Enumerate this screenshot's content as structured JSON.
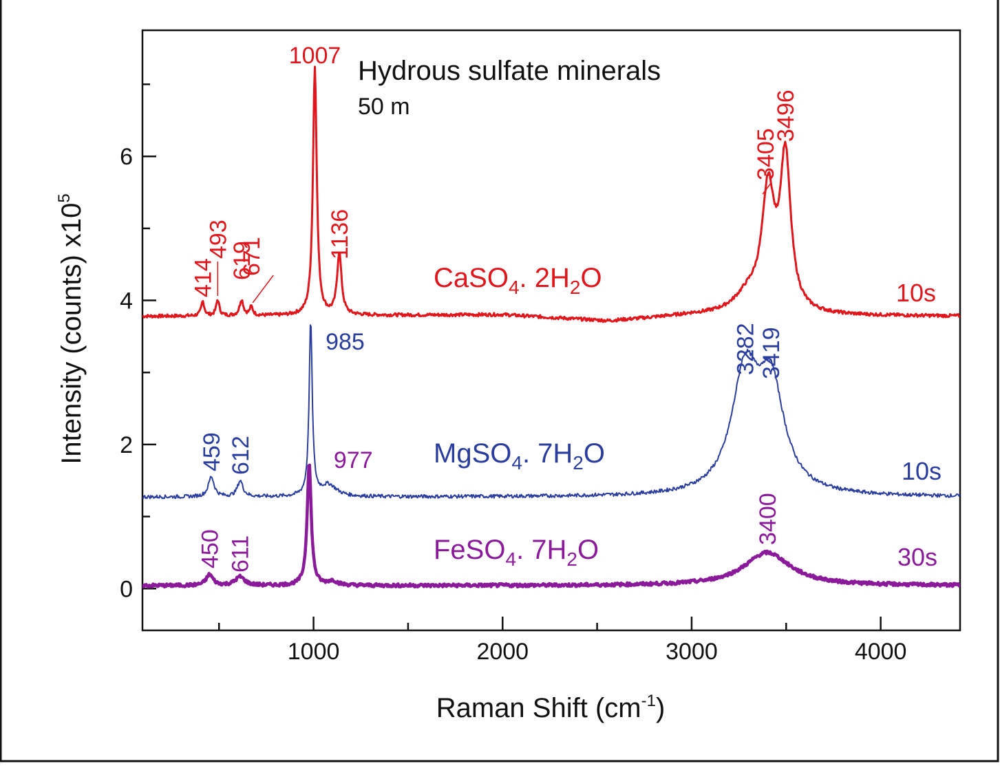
{
  "chart_data": {
    "type": "line",
    "title": "Hydrous sulfate minerals",
    "subtitle": "50 m",
    "xlabel": "Raman Shift (cm",
    "xlabel_sup": "-1",
    "xlabel_end": ")",
    "ylabel": "Intensity (counts) x10",
    "ylabel_sup": "5",
    "xlim": [
      95,
      4420
    ],
    "ylim": [
      -0.58,
      7.75
    ],
    "x_ticks_major": [
      1000,
      2000,
      3000,
      4000
    ],
    "x_tick_labels": [
      "1000",
      "2000",
      "3000",
      "4000"
    ],
    "x_ticks_minor": [
      500,
      1500,
      2500,
      3500
    ],
    "y_ticks_major": [
      0,
      2,
      4,
      6
    ],
    "y_tick_labels": [
      "0",
      "2",
      "4",
      "6"
    ],
    "y_ticks_minor": [
      1,
      3,
      5,
      7
    ],
    "grid": false,
    "series": [
      {
        "name": "CaSO4. 2H2O",
        "name_parts": [
          "CaSO",
          "4",
          ". 2H",
          "2",
          "O"
        ],
        "time": "10s",
        "color": "#e0161c",
        "stroke": 3,
        "baseline": 3.78,
        "baseline_shape": [
          [
            100,
            3.78
          ],
          [
            2000,
            3.8
          ],
          [
            2560,
            3.71
          ],
          [
            3000,
            3.79
          ],
          [
            4420,
            3.78
          ]
        ],
        "peaks": [
          {
            "x": 414,
            "h": 0.2,
            "w": 10
          },
          {
            "x": 493,
            "h": 0.22,
            "w": 10
          },
          {
            "x": 619,
            "h": 0.22,
            "w": 12
          },
          {
            "x": 671,
            "h": 0.12,
            "w": 10
          },
          {
            "x": 1007,
            "h": 3.45,
            "w": 12
          },
          {
            "x": 1136,
            "h": 0.86,
            "w": 14
          },
          {
            "x": 3405,
            "h": 1.62,
            "w": 40
          },
          {
            "x": 3496,
            "h": 2.1,
            "w": 34
          },
          {
            "x": 3300,
            "h": 0.25,
            "w": 90
          }
        ],
        "peak_labels": [
          {
            "text": "414",
            "x": 414
          },
          {
            "text": "493",
            "x": 493
          },
          {
            "text": "619",
            "x": 619
          },
          {
            "text": "671",
            "x": 671
          },
          {
            "text": "1007",
            "x": 1007
          },
          {
            "text": "1136",
            "x": 1136
          },
          {
            "text": "3405",
            "x": 3405
          },
          {
            "text": "3496",
            "x": 3496
          }
        ]
      },
      {
        "name": "MgSO4. 7H2O",
        "name_parts": [
          "MgSO",
          "4",
          ". 7H",
          "2",
          "O"
        ],
        "time": "10s",
        "color": "#2a3d9e",
        "stroke": 2,
        "baseline": 1.27,
        "baseline_shape": [
          [
            100,
            1.27
          ],
          [
            4420,
            1.27
          ]
        ],
        "peaks": [
          {
            "x": 459,
            "h": 0.28,
            "w": 18
          },
          {
            "x": 612,
            "h": 0.22,
            "w": 18
          },
          {
            "x": 985,
            "h": 2.42,
            "w": 10
          },
          {
            "x": 1080,
            "h": 0.16,
            "w": 50
          },
          {
            "x": 3282,
            "h": 1.6,
            "w": 85
          },
          {
            "x": 3419,
            "h": 1.45,
            "w": 85
          }
        ],
        "peak_labels": [
          {
            "text": "459",
            "x": 459
          },
          {
            "text": "612",
            "x": 612
          },
          {
            "text": "985",
            "x": 985
          },
          {
            "text": "3282",
            "x": 3282
          },
          {
            "text": "3419",
            "x": 3419
          }
        ]
      },
      {
        "name": "FeSO4. 7H2O",
        "name_parts": [
          "FeSO",
          "4",
          ". 7H",
          "2",
          "O"
        ],
        "time": "30s",
        "color": "#8b1a9b",
        "stroke": 4.5,
        "baseline": 0.04,
        "baseline_shape": [
          [
            100,
            0.04
          ],
          [
            4420,
            0.04
          ]
        ],
        "peaks": [
          {
            "x": 450,
            "h": 0.15,
            "w": 22
          },
          {
            "x": 611,
            "h": 0.12,
            "w": 30
          },
          {
            "x": 977,
            "h": 1.7,
            "w": 13
          },
          {
            "x": 1100,
            "h": 0.06,
            "w": 30
          },
          {
            "x": 3400,
            "h": 0.46,
            "w": 150
          }
        ],
        "peak_labels": [
          {
            "text": "450",
            "x": 450
          },
          {
            "text": "611",
            "x": 611
          },
          {
            "text": "977",
            "x": 977
          },
          {
            "text": "3400",
            "x": 3400
          }
        ]
      }
    ]
  }
}
